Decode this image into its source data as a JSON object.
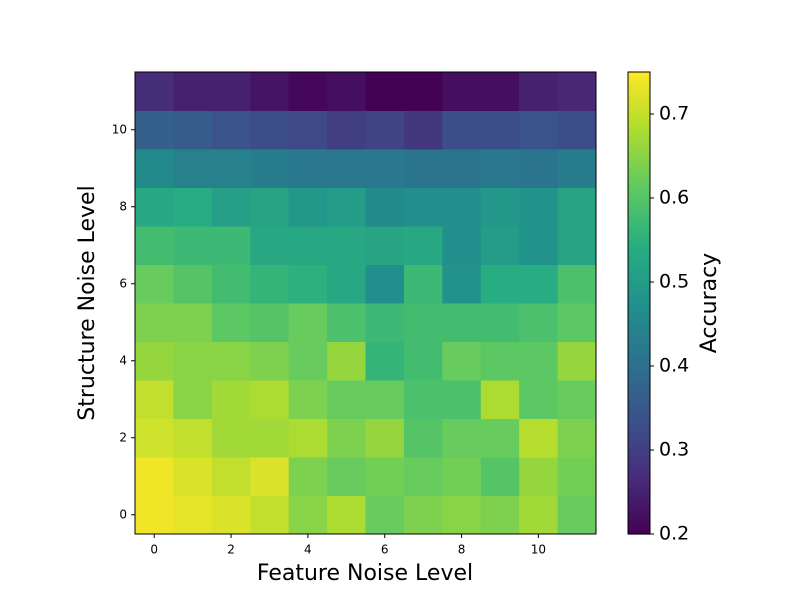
{
  "chart_data": {
    "type": "heatmap",
    "xlabel": "Feature Noise Level",
    "ylabel": "Structure Noise Level",
    "x": [
      0,
      1,
      2,
      3,
      4,
      5,
      6,
      7,
      8,
      9,
      10,
      11
    ],
    "y": [
      0,
      1,
      2,
      3,
      4,
      5,
      6,
      7,
      8,
      9,
      10,
      11
    ],
    "values": [
      [
        0.74,
        0.73,
        0.72,
        0.7,
        0.65,
        0.68,
        0.62,
        0.64,
        0.65,
        0.64,
        0.67,
        0.62
      ],
      [
        0.74,
        0.72,
        0.7,
        0.72,
        0.64,
        0.62,
        0.63,
        0.62,
        0.63,
        0.6,
        0.66,
        0.63
      ],
      [
        0.71,
        0.7,
        0.67,
        0.67,
        0.68,
        0.64,
        0.66,
        0.6,
        0.62,
        0.62,
        0.69,
        0.64
      ],
      [
        0.7,
        0.65,
        0.67,
        0.68,
        0.64,
        0.62,
        0.62,
        0.59,
        0.59,
        0.68,
        0.61,
        0.62
      ],
      [
        0.66,
        0.65,
        0.65,
        0.64,
        0.62,
        0.66,
        0.56,
        0.58,
        0.62,
        0.61,
        0.61,
        0.66
      ],
      [
        0.64,
        0.64,
        0.61,
        0.6,
        0.62,
        0.59,
        0.57,
        0.58,
        0.58,
        0.58,
        0.59,
        0.61
      ],
      [
        0.62,
        0.6,
        0.58,
        0.56,
        0.55,
        0.53,
        0.47,
        0.57,
        0.48,
        0.54,
        0.54,
        0.59
      ],
      [
        0.58,
        0.57,
        0.57,
        0.53,
        0.53,
        0.53,
        0.52,
        0.53,
        0.47,
        0.5,
        0.48,
        0.52
      ],
      [
        0.53,
        0.54,
        0.51,
        0.52,
        0.49,
        0.5,
        0.46,
        0.47,
        0.47,
        0.49,
        0.48,
        0.52
      ],
      [
        0.46,
        0.44,
        0.44,
        0.43,
        0.42,
        0.42,
        0.42,
        0.41,
        0.41,
        0.42,
        0.41,
        0.43
      ],
      [
        0.37,
        0.36,
        0.34,
        0.33,
        0.32,
        0.3,
        0.31,
        0.29,
        0.33,
        0.33,
        0.34,
        0.33
      ],
      [
        0.27,
        0.25,
        0.25,
        0.23,
        0.21,
        0.22,
        0.2,
        0.2,
        0.22,
        0.22,
        0.25,
        0.26
      ]
    ],
    "xlim": [
      -0.5,
      11.5
    ],
    "ylim": [
      -0.5,
      11.5
    ],
    "xticks": [
      0,
      2,
      4,
      6,
      8,
      10
    ],
    "yticks": [
      0,
      2,
      4,
      6,
      8,
      10
    ],
    "colormap": "viridis",
    "colorbar": {
      "label": "Accuracy",
      "lim": [
        0.2,
        0.75
      ],
      "ticks": [
        0.2,
        0.3,
        0.4,
        0.5,
        0.6,
        0.7
      ]
    }
  }
}
